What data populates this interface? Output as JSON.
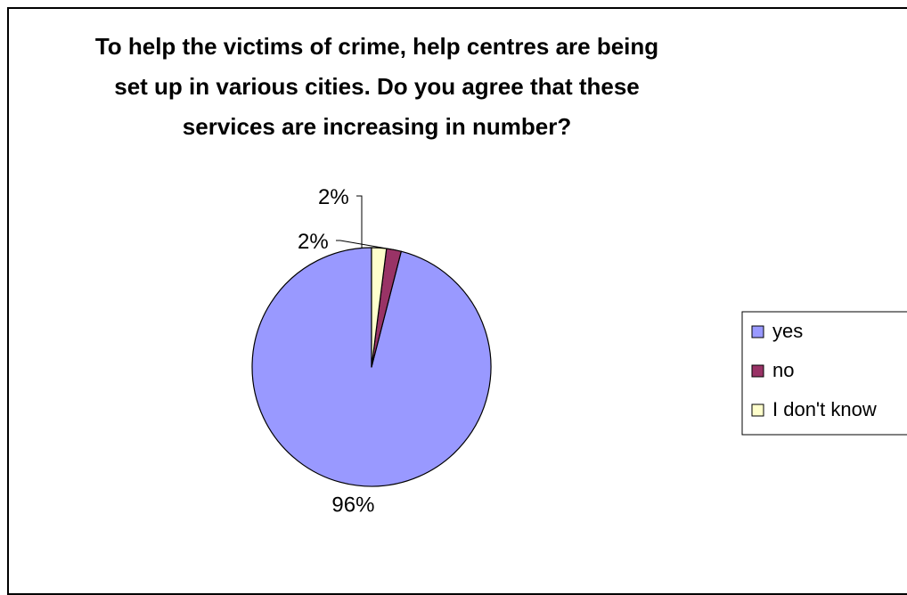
{
  "chart_data": {
    "type": "pie",
    "title": "To help the victims of crime, help centres are being set up in various cities. Do you agree that these services are increasing in number?",
    "categories": [
      "yes",
      "no",
      "I don't know"
    ],
    "values": [
      96,
      2,
      2
    ],
    "labels": [
      "96%",
      "2%",
      "2%"
    ],
    "colors": [
      "#9999FF",
      "#993366",
      "#FFFFCC"
    ],
    "legend": "right",
    "start": "12 o'clock, clockwise"
  }
}
